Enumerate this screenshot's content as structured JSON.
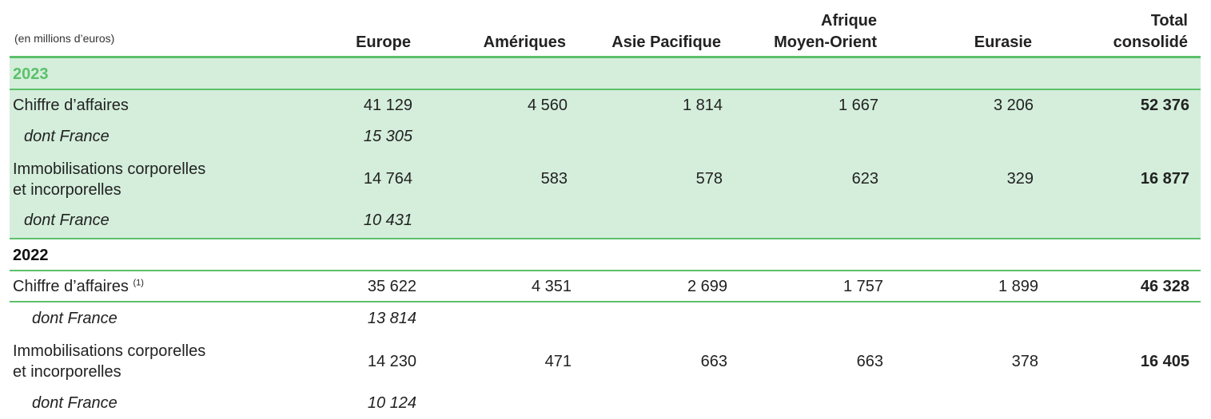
{
  "table": {
    "units": "(en millions d’euros)",
    "columns": {
      "europe": "Europe",
      "ameriques": "Amériques",
      "asie": "Asie Pacifique",
      "afrique_line1": "Afrique",
      "afrique_line2": "Moyen-Orient",
      "eurasie": "Eurasie",
      "total_line1": "Total",
      "total_line2": "consolidé"
    },
    "sections": [
      {
        "year": "2023",
        "rows": [
          {
            "label": "Chiffre d’affaires",
            "europe": "41 129",
            "ameriques": "4 560",
            "asie": "1 814",
            "afrique": "1 667",
            "eurasie": "3 206",
            "total": "52 376"
          },
          {
            "label": "dont France",
            "europe": "15 305"
          },
          {
            "label_line1": "Immobilisations corporelles",
            "label_line2": "et incorporelles",
            "europe": "14 764",
            "ameriques": "583",
            "asie": "578",
            "afrique": "623",
            "eurasie": "329",
            "total": "16 877"
          },
          {
            "label": "dont France",
            "europe": "10 431"
          }
        ]
      },
      {
        "year": "2022",
        "rows": [
          {
            "label": "Chiffre d’affaires",
            "note": "(1)",
            "europe": "35 622",
            "ameriques": "4 351",
            "asie": "2 699",
            "afrique": "1 757",
            "eurasie": "1 899",
            "total": "46 328"
          },
          {
            "label": "dont France",
            "europe": "13 814"
          },
          {
            "label_line1": "Immobilisations corporelles",
            "label_line2": "et incorporelles",
            "europe": "14 230",
            "ameriques": "471",
            "asie": "663",
            "afrique": "663",
            "eurasie": "378",
            "total": "16 405"
          },
          {
            "label": "dont France",
            "europe": "10 124"
          }
        ]
      }
    ]
  },
  "colors": {
    "accent_green": "#5cc06a",
    "highlight_background": "#d4eedb"
  }
}
